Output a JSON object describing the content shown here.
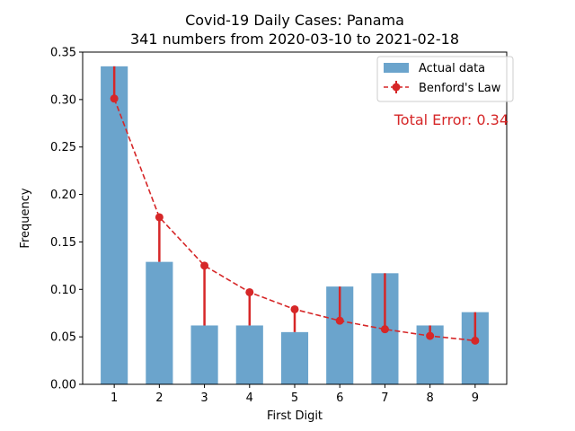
{
  "chart_data": {
    "type": "bar",
    "title": "Covid-19 Daily Cases: Panama",
    "subtitle": "341 numbers from 2020-03-10 to 2021-02-18",
    "xlabel": "First Digit",
    "ylabel": "Frequency",
    "ylim": [
      0,
      0.35
    ],
    "yticks": [
      "0.00",
      "0.05",
      "0.10",
      "0.15",
      "0.20",
      "0.25",
      "0.30",
      "0.35"
    ],
    "categories": [
      "1",
      "2",
      "3",
      "4",
      "5",
      "6",
      "7",
      "8",
      "9"
    ],
    "series": [
      {
        "name": "Actual data",
        "type": "bar",
        "color": "#5b9ac6",
        "values": [
          0.335,
          0.129,
          0.062,
          0.062,
          0.055,
          0.103,
          0.117,
          0.062,
          0.076
        ]
      },
      {
        "name": "Benford's Law",
        "type": "line",
        "style": "dashed",
        "marker": "circle",
        "color": "#d62728",
        "values": [
          0.301,
          0.176,
          0.125,
          0.097,
          0.079,
          0.067,
          0.058,
          0.051,
          0.046
        ]
      }
    ],
    "annotation": "Total Error: 0.34",
    "annotation_color": "#d62728",
    "legend_position": "top-right",
    "grid": false
  }
}
